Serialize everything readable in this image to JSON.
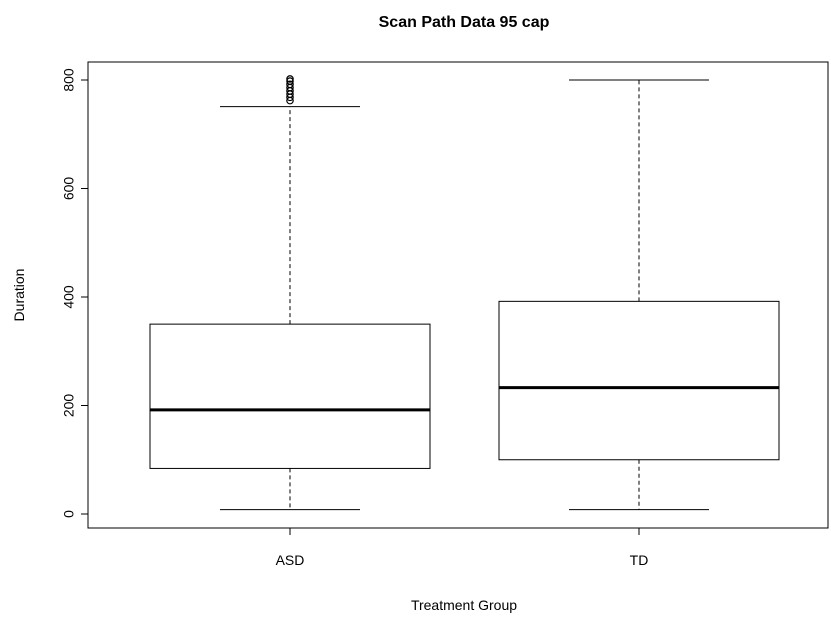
{
  "chart_data": {
    "type": "boxplot",
    "title": "Scan Path Data 95 cap",
    "xlabel": "Treatment Group",
    "ylabel": "Duration",
    "ylim": [
      -25,
      810
    ],
    "y_ticks": [
      "0",
      "200",
      "400",
      "600",
      "800"
    ],
    "categories": [
      "ASD",
      "TD"
    ],
    "boxes": [
      {
        "name": "ASD",
        "whisker_low": 8,
        "q1": 84,
        "median": 192,
        "q3": 350,
        "whisker_high": 751,
        "outliers": [
          762,
          768,
          774,
          780,
          786,
          792,
          798,
          802
        ]
      },
      {
        "name": "TD",
        "whisker_low": 8,
        "q1": 100,
        "median": 233,
        "q3": 392,
        "whisker_high": 800,
        "outliers": []
      }
    ],
    "grid": false,
    "legend": "none"
  }
}
